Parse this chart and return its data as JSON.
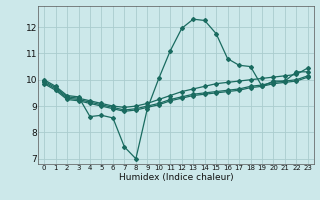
{
  "xlabel": "Humidex (Indice chaleur)",
  "background_color": "#cce8ea",
  "grid_color": "#aaccce",
  "line_color": "#1a6b60",
  "xlim": [
    -0.5,
    23.5
  ],
  "ylim": [
    6.8,
    12.8
  ],
  "yticks": [
    7,
    8,
    9,
    10,
    11,
    12
  ],
  "xticks": [
    0,
    1,
    2,
    3,
    4,
    5,
    6,
    7,
    8,
    9,
    10,
    11,
    12,
    13,
    14,
    15,
    16,
    17,
    18,
    19,
    20,
    21,
    22,
    23
  ],
  "series": [
    {
      "x": [
        0,
        1,
        2,
        3,
        4,
        5,
        6,
        7,
        8,
        9,
        10,
        11,
        12,
        13,
        14,
        15,
        16,
        17,
        18,
        19,
        20,
        21,
        22,
        23
      ],
      "y": [
        10.0,
        9.75,
        9.4,
        9.35,
        8.6,
        8.65,
        8.55,
        7.45,
        7.0,
        8.9,
        10.05,
        11.1,
        11.95,
        12.3,
        12.25,
        11.75,
        10.8,
        10.55,
        10.5,
        9.75,
        9.95,
        9.95,
        10.3,
        10.3
      ]
    },
    {
      "x": [
        0,
        1,
        2,
        3,
        4,
        5,
        6,
        7,
        8,
        9,
        10,
        11,
        12,
        13,
        14,
        15,
        16,
        17,
        18,
        19,
        20,
        21,
        22,
        23
      ],
      "y": [
        9.95,
        9.7,
        9.35,
        9.3,
        9.2,
        9.1,
        9.0,
        8.95,
        9.0,
        9.1,
        9.25,
        9.4,
        9.55,
        9.65,
        9.75,
        9.85,
        9.9,
        9.95,
        10.0,
        10.05,
        10.1,
        10.15,
        10.2,
        10.45
      ]
    },
    {
      "x": [
        0,
        1,
        2,
        3,
        4,
        5,
        6,
        7,
        8,
        9,
        10,
        11,
        12,
        13,
        14,
        15,
        16,
        17,
        18,
        19,
        20,
        21,
        22,
        23
      ],
      "y": [
        9.9,
        9.65,
        9.3,
        9.25,
        9.15,
        9.05,
        8.95,
        8.85,
        8.9,
        9.0,
        9.1,
        9.25,
        9.35,
        9.45,
        9.5,
        9.55,
        9.6,
        9.65,
        9.75,
        9.8,
        9.9,
        9.95,
        10.0,
        10.15
      ]
    },
    {
      "x": [
        0,
        1,
        2,
        3,
        4,
        5,
        6,
        7,
        8,
        9,
        10,
        11,
        12,
        13,
        14,
        15,
        16,
        17,
        18,
        19,
        20,
        21,
        22,
        23
      ],
      "y": [
        9.85,
        9.6,
        9.25,
        9.2,
        9.1,
        9.0,
        8.9,
        8.8,
        8.85,
        8.95,
        9.05,
        9.2,
        9.3,
        9.4,
        9.45,
        9.5,
        9.55,
        9.6,
        9.7,
        9.75,
        9.85,
        9.9,
        9.95,
        10.1
      ]
    }
  ]
}
